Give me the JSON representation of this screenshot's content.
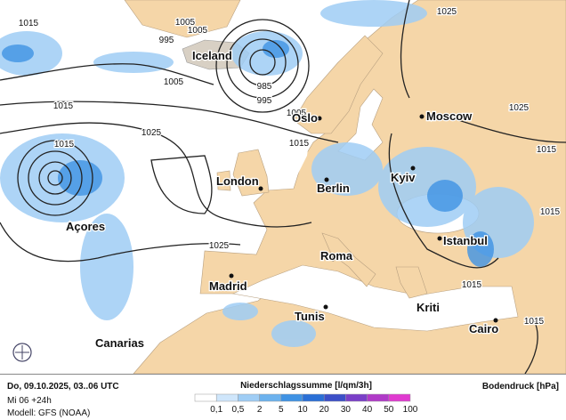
{
  "map": {
    "cities": [
      "Iceland",
      "Oslo",
      "Moscow",
      "London",
      "Berlin",
      "Kyiv",
      "Açores",
      "Madrid",
      "Roma",
      "Istanbul",
      "Tunis",
      "Kriti",
      "Cairo",
      "Canarias"
    ],
    "isobar_labels": [
      "1015",
      "1005",
      "995",
      "1005",
      "1025",
      "985",
      "995",
      "1005",
      "1015",
      "1025",
      "1015",
      "1005",
      "1015",
      "1025",
      "1015",
      "1015",
      "1025",
      "1015",
      "1015"
    ]
  },
  "footer": {
    "date": "Do, 09.10.2025, 03..06 UTC",
    "run": "Mi 06 +24h",
    "model": "Modell: GFS (NOAA)",
    "precip_title": "Niederschlagssumme [l/qm/3h]",
    "pressure_title": "Bodendruck [hPa]",
    "legend": [
      {
        "label": "0,1",
        "color": "#ffffff"
      },
      {
        "label": "0,5",
        "color": "#cfe6fb"
      },
      {
        "label": "2",
        "color": "#9fcdf5"
      },
      {
        "label": "5",
        "color": "#6cb2ee"
      },
      {
        "label": "10",
        "color": "#3f92e4"
      },
      {
        "label": "20",
        "color": "#2a6fd6"
      },
      {
        "label": "30",
        "color": "#3c4fc8"
      },
      {
        "label": "40",
        "color": "#7a3fc8"
      },
      {
        "label": "50",
        "color": "#b03ac8"
      },
      {
        "label": "100",
        "color": "#e03ad0"
      }
    ]
  }
}
